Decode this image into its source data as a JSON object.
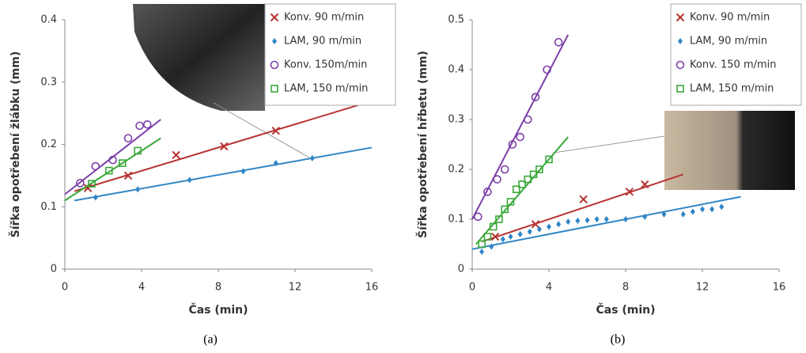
{
  "chart_data": [
    {
      "type": "scatter",
      "caption": "(a)",
      "x_label": "Čas (min)",
      "y_label": "Šířka opotřebení žlábku (mm)",
      "xlim": [
        0,
        16
      ],
      "ylim": [
        0,
        0.4
      ],
      "xticks": [
        0,
        4,
        8,
        12,
        16
      ],
      "yticks": [
        0,
        0.1,
        0.2,
        0.3,
        0.4
      ],
      "series": [
        {
          "name": "Konv. 90 m/min",
          "color": "#b83232",
          "marker": "x",
          "x": [
            1.2,
            3.3,
            5.8,
            8.3,
            11
          ],
          "values": [
            0.13,
            0.15,
            0.183,
            0.197,
            0.222
          ],
          "fit": {
            "x": [
              0.5,
              15.5
            ],
            "y": [
              0.125,
              0.265
            ]
          }
        },
        {
          "name": "LAM, 90 m/min",
          "color": "#2f86c6",
          "marker": "diamond",
          "x": [
            1.6,
            3.8,
            6.5,
            9.3,
            11,
            12.9
          ],
          "values": [
            0.115,
            0.128,
            0.143,
            0.157,
            0.17,
            0.178
          ],
          "fit": {
            "x": [
              0.5,
              16
            ],
            "y": [
              0.11,
              0.195
            ]
          }
        },
        {
          "name": "Konv. 150m/min",
          "color": "#7b3fa8",
          "marker": "circle",
          "x": [
            0.8,
            1.6,
            2.5,
            3.3,
            3.9,
            4.3
          ],
          "values": [
            0.138,
            0.165,
            0.175,
            0.21,
            0.23,
            0.232
          ],
          "fit": {
            "x": [
              0,
              5
            ],
            "y": [
              0.12,
              0.24
            ]
          }
        },
        {
          "name": "LAM, 150 m/min",
          "color": "#3aa83a",
          "marker": "square",
          "x": [
            1.4,
            2.3,
            3,
            3.8
          ],
          "values": [
            0.137,
            0.158,
            0.17,
            0.19
          ],
          "fit": {
            "x": [
              0,
              5
            ],
            "y": [
              0.11,
              0.21
            ]
          }
        }
      ]
    },
    {
      "type": "scatter",
      "caption": "(b)",
      "x_label": "Čas (min)",
      "y_label": "Šířka opotřebení hřbetu (mm)",
      "xlim": [
        0,
        16
      ],
      "ylim": [
        0,
        0.5
      ],
      "xticks": [
        0,
        4,
        8,
        12,
        16
      ],
      "yticks": [
        0,
        0.1,
        0.2,
        0.3,
        0.4,
        0.5
      ],
      "series": [
        {
          "name": "Konv. 90 m/min",
          "color": "#b83232",
          "marker": "x",
          "x": [
            1.2,
            3.3,
            5.8,
            8.2,
            9
          ],
          "values": [
            0.065,
            0.09,
            0.14,
            0.155,
            0.17
          ],
          "fit": {
            "x": [
              0.5,
              11
            ],
            "y": [
              0.055,
              0.19
            ]
          }
        },
        {
          "name": "LAM, 90 m/min",
          "color": "#2f86c6",
          "marker": "diamond",
          "x": [
            0.5,
            1,
            1.6,
            2,
            2.5,
            3,
            3.5,
            4,
            4.5,
            5,
            5.5,
            6,
            6.5,
            7,
            8,
            9,
            10,
            11,
            11.5,
            12,
            12.5,
            13
          ],
          "values": [
            0.035,
            0.045,
            0.06,
            0.065,
            0.07,
            0.075,
            0.08,
            0.085,
            0.09,
            0.095,
            0.097,
            0.098,
            0.1,
            0.1,
            0.1,
            0.105,
            0.11,
            0.11,
            0.115,
            0.12,
            0.12,
            0.125
          ],
          "fit": {
            "x": [
              0,
              14
            ],
            "y": [
              0.04,
              0.145
            ]
          }
        },
        {
          "name": "Konv. 150 m/min",
          "color": "#7b3fa8",
          "marker": "circle",
          "x": [
            0.3,
            0.8,
            1.3,
            1.7,
            2.1,
            2.5,
            2.9,
            3.3,
            3.9,
            4.5
          ],
          "values": [
            0.105,
            0.155,
            0.18,
            0.2,
            0.25,
            0.265,
            0.3,
            0.345,
            0.4,
            0.455
          ],
          "fit": {
            "x": [
              0,
              5
            ],
            "y": [
              0.1,
              0.47
            ]
          }
        },
        {
          "name": "LAM, 150 m/min",
          "color": "#3aa83a",
          "marker": "square",
          "x": [
            0.5,
            0.8,
            1.1,
            1.4,
            1.7,
            2,
            2.3,
            2.6,
            2.9,
            3.2,
            3.5,
            4
          ],
          "values": [
            0.05,
            0.065,
            0.085,
            0.1,
            0.12,
            0.135,
            0.16,
            0.17,
            0.18,
            0.19,
            0.2,
            0.22
          ],
          "fit": {
            "x": [
              0.2,
              5
            ],
            "y": [
              0.05,
              0.265
            ]
          }
        }
      ]
    }
  ]
}
